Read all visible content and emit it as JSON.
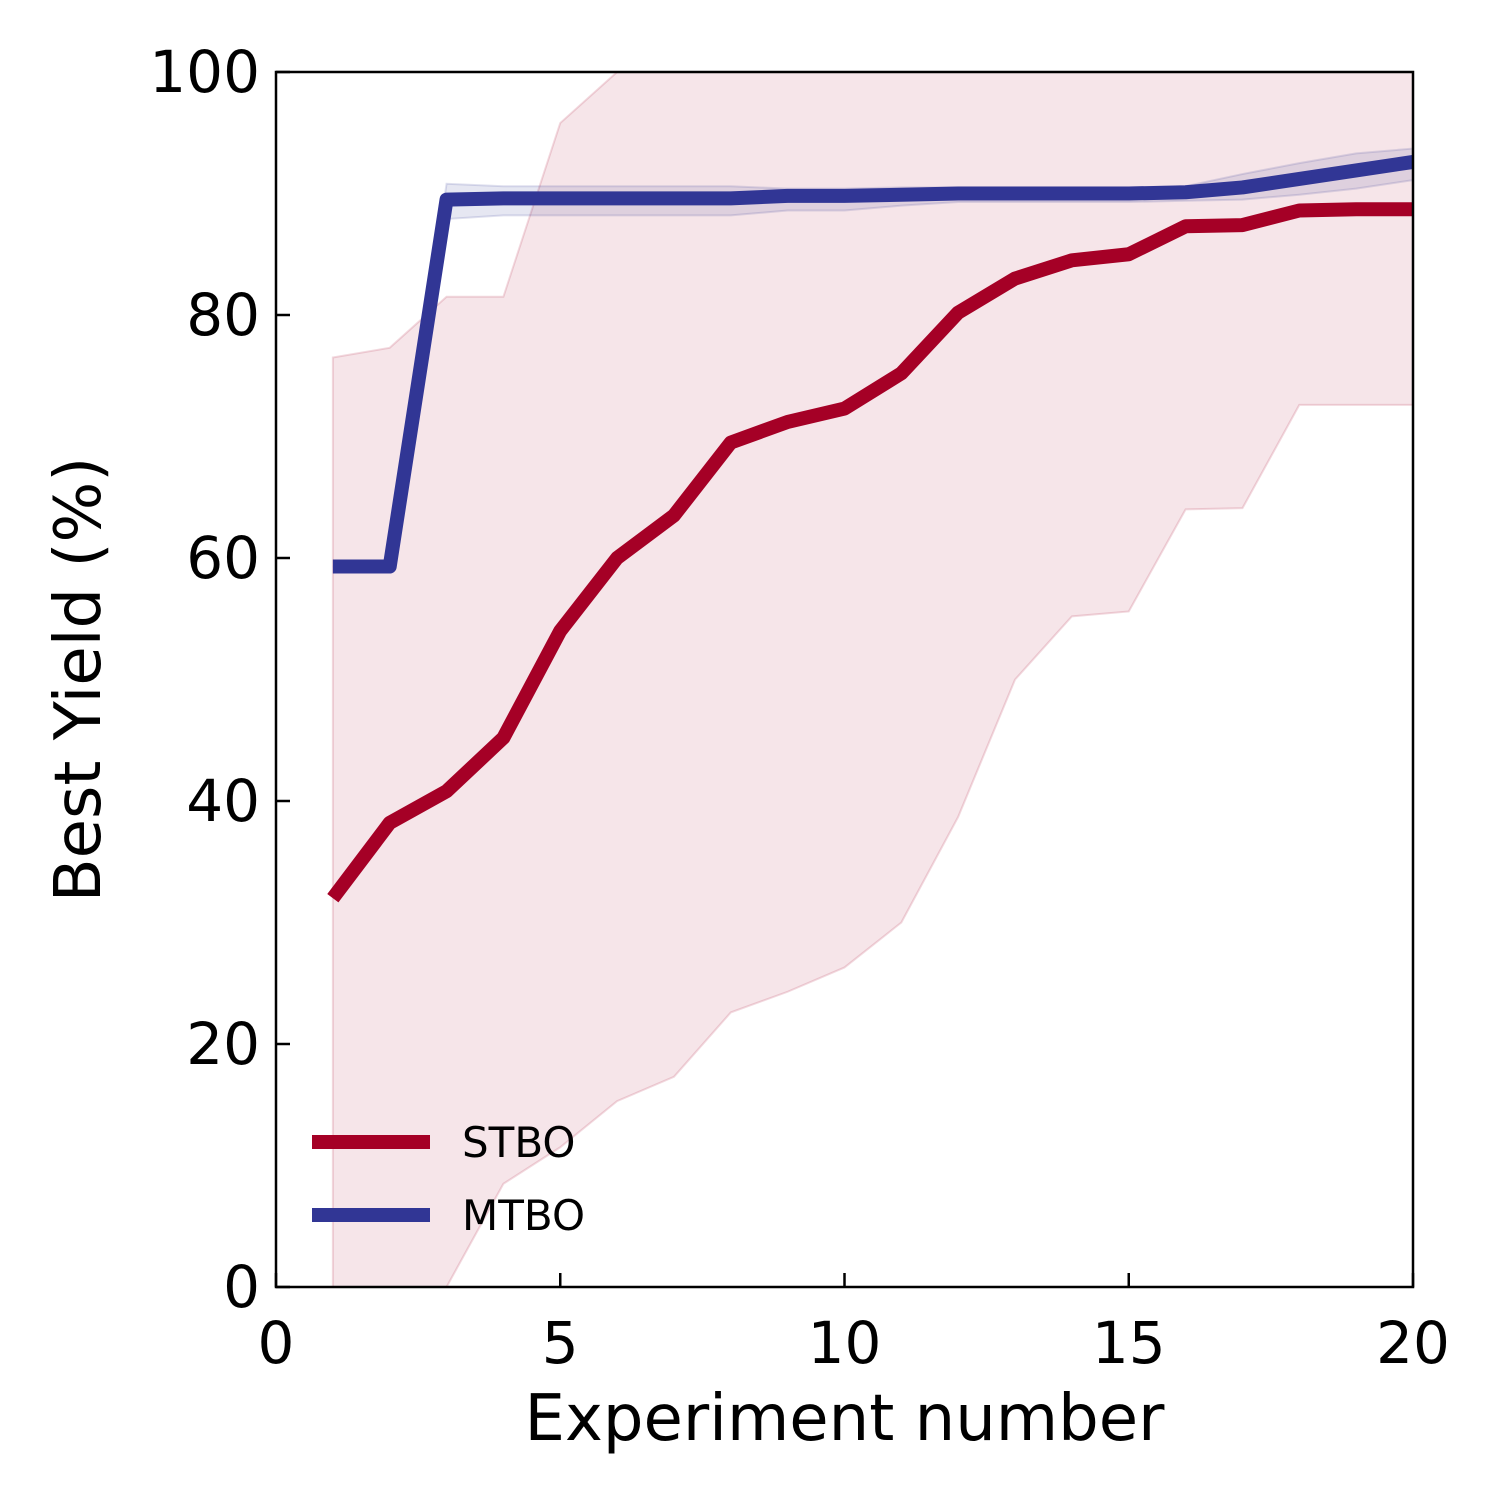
{
  "chart_data": {
    "type": "line",
    "title": "",
    "xlabel": "Experiment number",
    "ylabel": "Best Yield (%)",
    "xlim": [
      0,
      20
    ],
    "ylim": [
      0,
      100
    ],
    "xticks": [
      0,
      5,
      10,
      15,
      20
    ],
    "yticks": [
      0,
      20,
      40,
      60,
      80,
      100
    ],
    "grid": false,
    "legend_position": "bottom-left",
    "x": [
      1,
      2,
      3,
      4,
      5,
      6,
      7,
      8,
      9,
      10,
      11,
      12,
      13,
      14,
      15,
      16,
      17,
      18,
      19,
      20
    ],
    "series": [
      {
        "name": "STBO",
        "color": "#a50026",
        "band_color": "#a50026",
        "values": [
          32.0,
          38.2,
          40.8,
          45.2,
          54.0,
          60.0,
          63.5,
          69.5,
          71.2,
          72.3,
          75.2,
          80.2,
          83.0,
          84.5,
          85.0,
          87.3,
          87.4,
          88.6,
          88.7,
          88.7
        ],
        "upper": [
          76.5,
          77.3,
          81.5,
          81.5,
          95.8,
          100,
          100,
          100,
          100,
          100,
          100,
          100,
          100,
          100,
          100,
          100,
          100,
          100,
          100,
          100
        ],
        "lower": [
          0,
          0,
          0,
          8.5,
          11.5,
          15.3,
          17.3,
          22.6,
          24.3,
          26.3,
          30.0,
          38.7,
          50.0,
          55.2,
          55.6,
          64.0,
          64.1,
          72.6,
          72.6,
          72.6
        ]
      },
      {
        "name": "MTBO",
        "color": "#313695",
        "band_color": "#313695",
        "values": [
          59.3,
          59.3,
          89.5,
          89.6,
          89.6,
          89.6,
          89.6,
          89.6,
          89.8,
          89.8,
          89.9,
          90.0,
          90.0,
          90.0,
          90.0,
          90.1,
          90.5,
          91.2,
          91.9,
          92.6
        ],
        "upper": [
          59.3,
          59.3,
          90.8,
          90.6,
          90.6,
          90.6,
          90.6,
          90.6,
          90.4,
          90.4,
          90.5,
          90.5,
          90.5,
          90.5,
          90.5,
          90.6,
          91.6,
          92.5,
          93.3,
          93.7
        ],
        "lower": [
          59.3,
          59.3,
          87.9,
          88.2,
          88.2,
          88.2,
          88.2,
          88.2,
          88.6,
          88.6,
          89.0,
          89.3,
          89.3,
          89.3,
          89.3,
          89.4,
          89.5,
          89.9,
          90.4,
          91.1
        ]
      }
    ]
  }
}
